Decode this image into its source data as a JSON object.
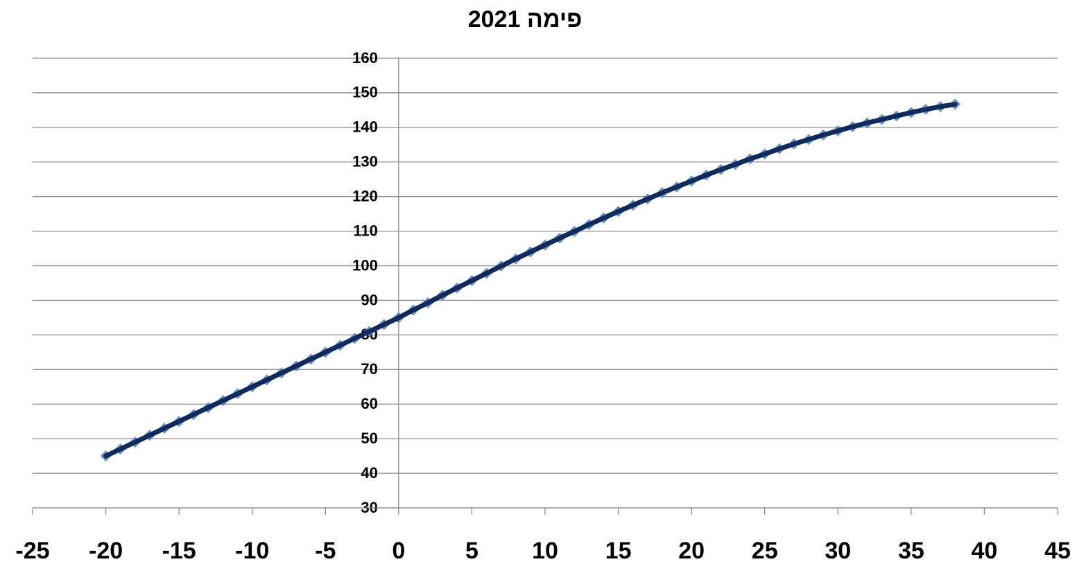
{
  "chart_data": {
    "type": "scatter",
    "title": "פימה 2021",
    "x": [
      -20,
      -19,
      -18,
      -17,
      -16,
      -15,
      -14,
      -13,
      -12,
      -11,
      -10,
      -9,
      -8,
      -7,
      -6,
      -5,
      -4,
      -3,
      -2,
      -1,
      0,
      1,
      2,
      3,
      4,
      5,
      6,
      7,
      8,
      9,
      10,
      11,
      12,
      13,
      14,
      15,
      16,
      17,
      18,
      19,
      20,
      21,
      22,
      23,
      24,
      25,
      26,
      27,
      28,
      29,
      30,
      31,
      32,
      33,
      34,
      35,
      36,
      37,
      38
    ],
    "series": [
      {
        "color": "#4f81bd",
        "line_color": "#0f2a5c",
        "values": [
          45,
          47,
          49,
          51,
          53,
          55,
          57,
          59,
          61,
          63,
          65,
          67,
          69,
          71,
          73,
          75,
          77,
          79,
          81,
          83,
          85,
          87.2,
          89.3,
          91.5,
          93.6,
          95.7,
          97.8,
          99.9,
          102.0,
          104.0,
          106.0,
          108.0,
          109.9,
          111.9,
          113.8,
          115.7,
          117.5,
          119.3,
          121.1,
          122.8,
          124.5,
          126.2,
          127.8,
          129.3,
          130.9,
          132.3,
          133.8,
          135.2,
          136.5,
          137.8,
          139.0,
          140.2,
          141.3,
          142.3,
          143.3,
          144.3,
          145.2,
          146.0,
          146.7
        ]
      }
    ],
    "xlim": [
      -25,
      45
    ],
    "xticks": [
      -25,
      -20,
      -15,
      -10,
      -5,
      0,
      5,
      10,
      15,
      20,
      25,
      30,
      35,
      40,
      45
    ],
    "ylim": [
      30,
      160
    ],
    "yticks": [
      30,
      40,
      50,
      60,
      70,
      80,
      90,
      100,
      110,
      120,
      130,
      140,
      150,
      160
    ],
    "grid": true
  }
}
